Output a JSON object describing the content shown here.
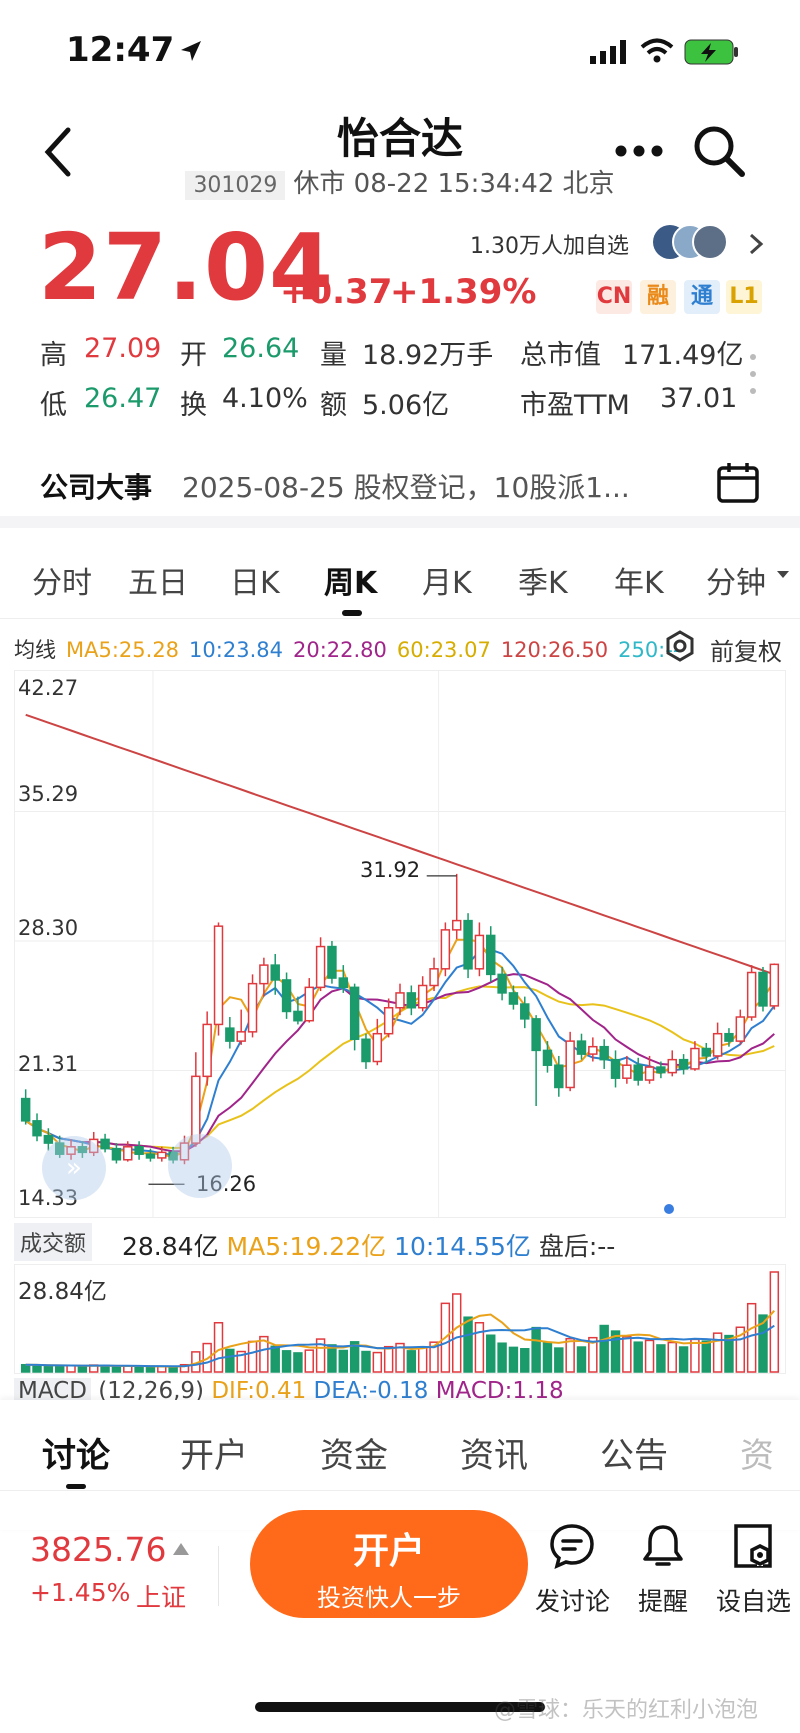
{
  "status_bar": {
    "time": "12:47"
  },
  "header": {
    "title": "怡合达",
    "code": "301029",
    "status": "休市 08-22 15:34:42 北京"
  },
  "quote": {
    "price": "27.04",
    "change": "+0.37",
    "change_pct": "+1.39%",
    "watchers": "1.30万人加自选",
    "badges": [
      "CN",
      "融",
      "通",
      "L1"
    ]
  },
  "stats": {
    "high_label": "高",
    "high": "27.09",
    "open_label": "开",
    "open": "26.64",
    "volume_label": "量",
    "volume": "18.92万手",
    "mktcap_label": "总市值",
    "mktcap": "171.49亿",
    "low_label": "低",
    "low": "26.47",
    "turnover_label": "换",
    "turnover": "4.10%",
    "amount_label": "额",
    "amount": "5.06亿",
    "pe_label": "市盈TTM",
    "pe": "37.01"
  },
  "event": {
    "label": "公司大事",
    "text": "2025-08-25 股权登记，10股派1..."
  },
  "period_tabs": [
    "分时",
    "五日",
    "日K",
    "周K",
    "月K",
    "季K",
    "年K",
    "分钟"
  ],
  "active_period": "周K",
  "ma_legend": {
    "label": "均线",
    "ma5": "MA5:25.28",
    "ma10": "10:23.84",
    "ma20": "20:22.80",
    "ma60": "60:23.07",
    "ma120": "120:26.50",
    "ma250": "250:--",
    "adjust": "前复权"
  },
  "chart_data": {
    "type": "candlestick",
    "y_ticks": [
      "42.27",
      "35.29",
      "28.30",
      "21.31",
      "14.33"
    ],
    "ylim": [
      14.33,
      42.27
    ],
    "high_marker": "31.92",
    "low_marker": "16.26",
    "colors": {
      "up": "#e0393e",
      "down": "#1b9a6b",
      "ma5": "#e9a21a",
      "ma10": "#2f7fd0",
      "ma20": "#a0248a",
      "ma60": "#e8c21a",
      "ma120": "#cc4444"
    },
    "candles": [
      [
        19.8,
        18.6,
        20.3,
        18.4
      ],
      [
        18.6,
        17.8,
        19.0,
        17.5
      ],
      [
        17.8,
        17.4,
        18.2,
        17.0
      ],
      [
        17.4,
        16.8,
        17.8,
        16.6
      ],
      [
        16.8,
        17.2,
        17.6,
        16.5
      ],
      [
        17.2,
        16.9,
        17.5,
        16.6
      ],
      [
        16.9,
        17.6,
        18.0,
        16.7
      ],
      [
        17.6,
        17.1,
        17.9,
        16.9
      ],
      [
        17.1,
        16.5,
        17.4,
        16.3
      ],
      [
        16.5,
        17.2,
        17.5,
        16.4
      ],
      [
        17.2,
        16.8,
        17.5,
        16.5
      ],
      [
        16.8,
        16.6,
        17.1,
        16.4
      ],
      [
        16.6,
        16.9,
        17.2,
        16.4
      ],
      [
        16.9,
        16.5,
        17.2,
        16.3
      ],
      [
        16.5,
        17.4,
        17.8,
        16.26
      ],
      [
        17.4,
        21.0,
        22.3,
        17.2
      ],
      [
        21.0,
        23.8,
        24.5,
        20.5
      ],
      [
        23.8,
        29.1,
        29.3,
        23.2
      ],
      [
        23.6,
        22.9,
        24.2,
        22.5
      ],
      [
        22.9,
        23.4,
        24.6,
        22.7
      ],
      [
        23.4,
        26.0,
        26.5,
        23.1
      ],
      [
        26.0,
        27.0,
        27.4,
        25.3
      ],
      [
        27.0,
        26.2,
        27.6,
        25.4
      ],
      [
        26.2,
        24.5,
        26.6,
        24.1
      ],
      [
        24.5,
        24.0,
        25.3,
        23.8
      ],
      [
        24.0,
        25.8,
        26.3,
        23.9
      ],
      [
        25.8,
        28.0,
        28.5,
        25.6
      ],
      [
        28.0,
        26.3,
        28.3,
        26.0
      ],
      [
        26.3,
        25.8,
        27.0,
        25.5
      ],
      [
        25.8,
        23.0,
        26.0,
        22.4
      ],
      [
        23.0,
        21.8,
        23.3,
        21.4
      ],
      [
        21.8,
        23.3,
        24.1,
        21.6
      ],
      [
        23.3,
        24.7,
        25.2,
        23.1
      ],
      [
        24.7,
        25.5,
        26.0,
        24.3
      ],
      [
        25.5,
        24.7,
        25.9,
        24.3
      ],
      [
        24.7,
        25.9,
        26.4,
        24.5
      ],
      [
        25.9,
        26.8,
        27.4,
        25.6
      ],
      [
        26.8,
        28.9,
        29.3,
        26.4
      ],
      [
        28.9,
        29.4,
        31.92,
        28.4
      ],
      [
        29.4,
        26.8,
        29.8,
        26.3
      ],
      [
        26.8,
        28.6,
        29.3,
        26.4
      ],
      [
        28.6,
        26.5,
        29.1,
        26.1
      ],
      [
        26.5,
        25.5,
        26.9,
        25.1
      ],
      [
        25.5,
        24.9,
        25.9,
        24.6
      ],
      [
        24.9,
        24.1,
        25.3,
        23.6
      ],
      [
        24.1,
        22.4,
        24.3,
        19.4
      ],
      [
        22.4,
        21.6,
        22.9,
        21.2
      ],
      [
        21.6,
        20.4,
        22.1,
        19.9
      ],
      [
        20.4,
        22.9,
        23.4,
        20.2
      ],
      [
        22.9,
        22.2,
        23.3,
        21.9
      ],
      [
        22.2,
        22.6,
        23.1,
        21.8
      ],
      [
        22.6,
        21.9,
        23.0,
        21.4
      ],
      [
        21.9,
        20.9,
        22.4,
        20.4
      ],
      [
        20.9,
        21.6,
        22.1,
        20.6
      ],
      [
        21.6,
        20.8,
        22.0,
        20.5
      ],
      [
        20.8,
        21.5,
        22.1,
        20.6
      ],
      [
        21.5,
        21.2,
        21.8,
        20.9
      ],
      [
        21.2,
        21.9,
        22.4,
        21.0
      ],
      [
        21.9,
        21.4,
        22.2,
        21.1
      ],
      [
        21.4,
        22.5,
        22.9,
        21.3
      ],
      [
        22.5,
        22.1,
        22.8,
        21.7
      ],
      [
        22.1,
        23.3,
        23.9,
        21.9
      ],
      [
        23.3,
        22.9,
        23.6,
        22.6
      ],
      [
        22.9,
        24.2,
        24.6,
        22.7
      ],
      [
        24.2,
        26.6,
        27.0,
        24.0
      ],
      [
        26.6,
        24.8,
        26.9,
        24.5
      ],
      [
        24.8,
        27.04,
        27.09,
        24.6
      ]
    ]
  },
  "volume": {
    "label": "成交额",
    "value": "28.84亿",
    "ma5": "MA5:19.22亿",
    "ma10": "10:14.55亿",
    "after_hours": "盘后:--",
    "axis_max": "28.84亿",
    "bars": [
      2.1,
      2.0,
      1.8,
      1.7,
      1.8,
      1.6,
      2.0,
      1.9,
      1.5,
      1.7,
      1.6,
      1.5,
      1.6,
      1.4,
      2.1,
      5.8,
      8.2,
      14.2,
      6.5,
      5.9,
      8.8,
      10.2,
      7.4,
      6.1,
      5.5,
      6.3,
      9.5,
      7.8,
      6.2,
      8.7,
      5.9,
      5.6,
      7.3,
      8.2,
      6.1,
      7.0,
      8.6,
      19.8,
      22.5,
      15.8,
      14.2,
      10.6,
      8.3,
      7.1,
      6.7,
      12.8,
      8.4,
      6.9,
      9.6,
      7.2,
      9.9,
      13.4,
      11.8,
      10.2,
      8.6,
      9.1,
      7.8,
      8.5,
      7.2,
      9.4,
      8.9,
      11.2,
      10.5,
      12.9,
      19.7,
      16.4,
      28.84
    ]
  },
  "macd": {
    "label": "MACD",
    "params": "(12,26,9)",
    "dif": "DIF:0.41",
    "dea": "DEA:-0.18",
    "macd": "MACD:1.18"
  },
  "bottom_tabs": [
    "讨论",
    "开户",
    "资金",
    "资讯",
    "公告",
    "资"
  ],
  "active_bottom_tab": "讨论",
  "index_quote": {
    "value": "3825.76",
    "change_pct": "+1.45%",
    "name": "上证"
  },
  "open_button": {
    "label": "开户",
    "sublabel": "投资快人一步"
  },
  "actions": [
    {
      "name": "discuss",
      "label": "发讨论"
    },
    {
      "name": "remind",
      "label": "提醒"
    },
    {
      "name": "watch",
      "label": "设自选"
    }
  ],
  "watermark": "@雪球：乐天的红利小泡泡"
}
